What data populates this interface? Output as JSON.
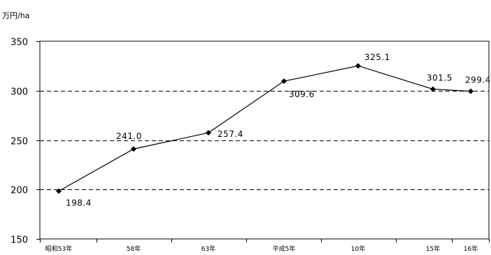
{
  "chart_data": {
    "type": "line",
    "title": "",
    "ylabel": "万円/ha",
    "xlabel": "",
    "categories": [
      "昭和53年",
      "58年",
      "63年",
      "平成5年",
      "10年",
      "15年",
      "16年"
    ],
    "series": [
      {
        "values": [
          198.4,
          241.0,
          257.4,
          309.6,
          325.1,
          301.5,
          299.4
        ],
        "labels": [
          "198.4",
          "241.0",
          "257.4",
          "309.6",
          "325.1",
          "301.5",
          "299.4"
        ],
        "color": "#000000",
        "marker": "diamond"
      }
    ],
    "ylim": [
      150,
      350
    ],
    "yticks": [
      150,
      200,
      250,
      300,
      350
    ],
    "grid": "dashed horizontal",
    "legend": "none"
  }
}
